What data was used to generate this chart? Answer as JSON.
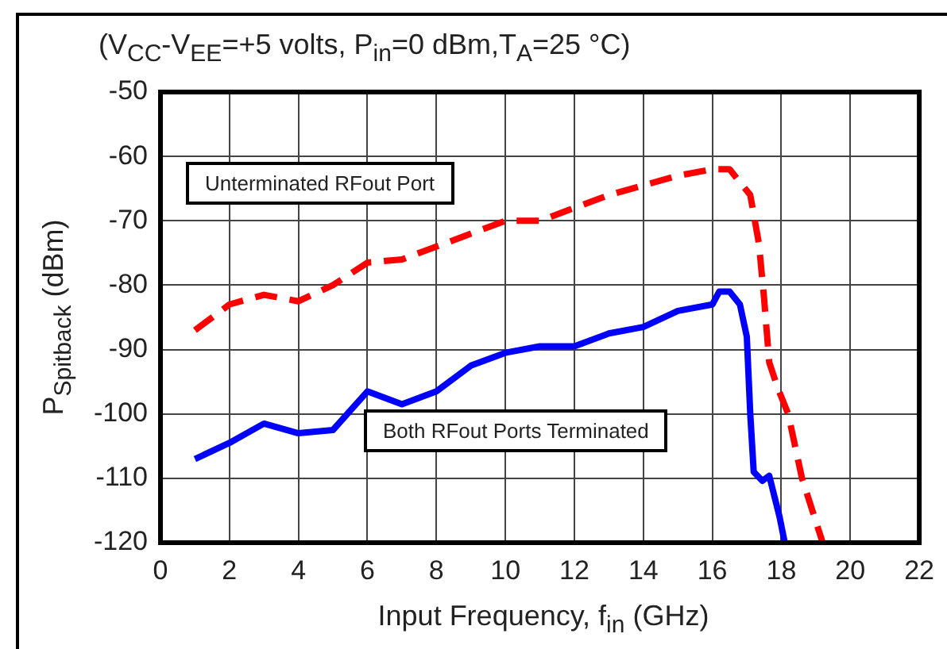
{
  "chart_data": {
    "type": "line",
    "title": "(V$_{CC}$-V$_{EE}$=+5 volts, P$_{in}$=0 dBm,T$_{A}$=25 °C)",
    "xlabel": "Input Frequency, f$_{in}$ (GHz)",
    "ylabel": "P$_{Spitback}$ (dBm)",
    "xlim": [
      0,
      22
    ],
    "xticks": [
      0,
      2,
      4,
      6,
      8,
      10,
      12,
      14,
      16,
      18,
      20,
      22
    ],
    "ylim": [
      -120,
      -50
    ],
    "yticks": [
      -120,
      -110,
      -100,
      -90,
      -80,
      -70,
      -60,
      -50
    ],
    "grid": true,
    "legend": false,
    "marker": "none",
    "annotations": [
      "Unterminated RFout Port",
      "Both RFout Ports Terminated"
    ],
    "series": [
      {
        "color": "#ff0000",
        "line_style": "dashed",
        "x": [
          1,
          2,
          3,
          4,
          5,
          6,
          7,
          8,
          9,
          10,
          11,
          12,
          13,
          14,
          15,
          16,
          16.5,
          17.1,
          17.35,
          17.5,
          17.65,
          17.9,
          18.2,
          18.6,
          19.2
        ],
        "values": [
          -87,
          -83,
          -81.5,
          -82.5,
          -80,
          -76.5,
          -76,
          -74,
          -72,
          -70,
          -70,
          -68,
          -66,
          -64.5,
          -63,
          -62,
          -62,
          -66,
          -73.5,
          -82,
          -92,
          -96,
          -100,
          -110,
          -120
        ]
      },
      {
        "color": "#0000ff",
        "line_style": "solid",
        "x": [
          1,
          2,
          3,
          4,
          5,
          6,
          7,
          8,
          9,
          10,
          11,
          12,
          13,
          14,
          15,
          16,
          16.2,
          16.5,
          16.8,
          17,
          17.1,
          17.2,
          17.45,
          17.65,
          17.95,
          18.1
        ],
        "values": [
          -107,
          -104.5,
          -101.5,
          -103,
          -102.5,
          -96.5,
          -98.5,
          -96.5,
          -92.5,
          -90.5,
          -89.5,
          -89.5,
          -87.5,
          -86.5,
          -84,
          -83,
          -81,
          -81,
          -83,
          -88,
          -100,
          -109,
          -110.4,
          -109.6,
          -116,
          -120
        ]
      }
    ]
  }
}
